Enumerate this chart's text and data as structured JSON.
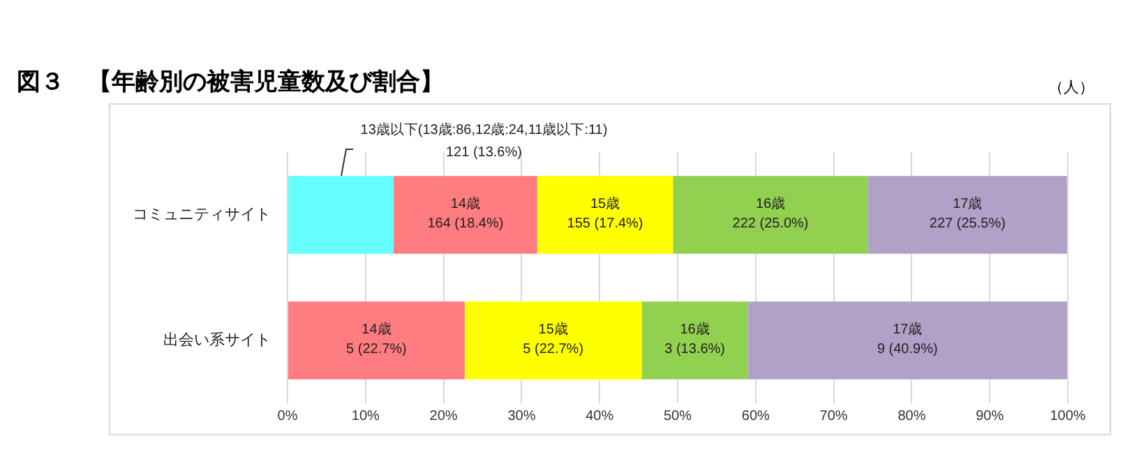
{
  "chart_data": {
    "type": "bar",
    "orientation": "horizontal",
    "stacked": true,
    "title": "図３　【年齢別の被害児童数及び割合】",
    "annotations": [
      "（人）"
    ],
    "categories": [
      "コミュニティサイト",
      "出会い系サイト"
    ],
    "series": [
      {
        "color": "#66ffff",
        "values": [
          13.6,
          null
        ],
        "value_labels": [
          "13歳以下(13歳:86,12歳:24,11歳以下:11)\n121 (13.6%)",
          null
        ]
      },
      {
        "color": "#ff7c80",
        "values": [
          18.4,
          22.7
        ],
        "value_labels": [
          "14歳\n164 (18.4%)",
          "14歳\n5 (22.7%)"
        ]
      },
      {
        "color": "#ffff00",
        "values": [
          17.4,
          22.7
        ],
        "value_labels": [
          "15歳\n155 (17.4%)",
          "15歳\n5 (22.7%)"
        ]
      },
      {
        "color": "#92d050",
        "values": [
          25.0,
          13.6
        ],
        "value_labels": [
          "16歳\n222 (25.0%)",
          "16歳\n3 (13.6%)"
        ]
      },
      {
        "color": "#b1a0c7",
        "values": [
          25.5,
          40.9
        ],
        "value_labels": [
          "17歳\n227 (25.5%)",
          "17歳\n9 (40.9%)"
        ]
      }
    ],
    "xlim": [
      0,
      100
    ],
    "xticks": [
      {
        "value": 0,
        "label": "0%"
      },
      {
        "value": 10,
        "label": "10%"
      },
      {
        "value": 20,
        "label": "20%"
      },
      {
        "value": 30,
        "label": "30%"
      },
      {
        "value": 40,
        "label": "40%"
      },
      {
        "value": 50,
        "label": "50%"
      },
      {
        "value": 60,
        "label": "60%"
      },
      {
        "value": 70,
        "label": "70%"
      },
      {
        "value": 80,
        "label": "80%"
      },
      {
        "value": 90,
        "label": "90%"
      },
      {
        "value": 100,
        "label": "100%"
      }
    ],
    "grid": "x",
    "legend": false
  }
}
